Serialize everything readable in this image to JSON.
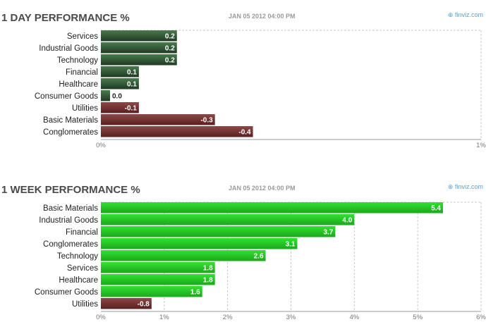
{
  "source_label": "finviz.com",
  "colors": {
    "day_positive_dark": "#1f3a22",
    "day_positive_light": "#4a7a4e",
    "day_negative_dark": "#5a1e1e",
    "day_negative_light": "#8e4848",
    "week_positive_dark": "#1aa81a",
    "week_positive_light": "#33e033",
    "week_negative_dark": "#5a1e1e",
    "week_negative_light": "#8e4848"
  },
  "chart_data": [
    {
      "type": "bar",
      "orientation": "horizontal",
      "title": "1 DAY PERFORMANCE %",
      "date": "JAN 05 2012 04:00 PM",
      "categories": [
        "Services",
        "Industrial Goods",
        "Technology",
        "Financial",
        "Healthcare",
        "Consumer Goods",
        "Utilities",
        "Basic Materials",
        "Conglomerates"
      ],
      "values": [
        0.2,
        0.2,
        0.2,
        0.1,
        0.1,
        0.0,
        -0.1,
        -0.3,
        -0.4
      ],
      "value_labels": [
        "0.2",
        "0.2",
        "0.2",
        "0.1",
        "0.1",
        "0.0",
        "-0.1",
        "-0.3",
        "-0.4"
      ],
      "xlim": [
        0,
        1
      ],
      "xticks": [
        "0%",
        "1%"
      ],
      "bar_length": "absolute value",
      "grid": true
    },
    {
      "type": "bar",
      "orientation": "horizontal",
      "title": "1 WEEK PERFORMANCE %",
      "date": "JAN 05 2012 04:00 PM",
      "categories": [
        "Basic Materials",
        "Industrial Goods",
        "Financial",
        "Conglomerates",
        "Technology",
        "Services",
        "Healthcare",
        "Consumer Goods",
        "Utilities"
      ],
      "values": [
        5.4,
        4.0,
        3.7,
        3.1,
        2.6,
        1.8,
        1.8,
        1.6,
        -0.8
      ],
      "value_labels": [
        "5.4",
        "4.0",
        "3.7",
        "3.1",
        "2.6",
        "1.8",
        "1.8",
        "1.6",
        "-0.8"
      ],
      "xlim": [
        0,
        6
      ],
      "xticks": [
        "0%",
        "1%",
        "2%",
        "3%",
        "4%",
        "5%",
        "6%"
      ],
      "bar_length": "absolute value",
      "grid": true
    }
  ]
}
